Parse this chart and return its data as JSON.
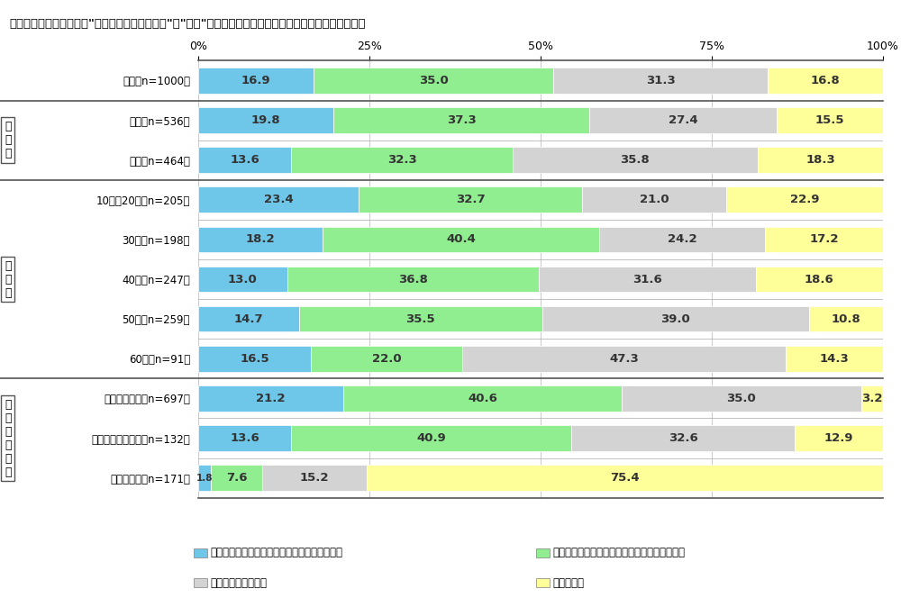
{
  "title": "商品を購入するときに、\"温室効果ガス削減効果\"と\"価格\"ではどちらを重視して選ぶか　［単一回答形式］",
  "categories": [
    "全体［n=1000］",
    "男性［n=536］",
    "女性［n=464］",
    "10代・20代［n=205］",
    "30代［n=198］",
    "40代［n=247］",
    "50代［n=259］",
    "60代［n=91］",
    "取り組みたい［n=697］",
    "取り組みたくない［n=132］",
    "わからない［n=171］"
  ],
  "group_labels": [
    "男\n女\n別",
    "年\n代\n別",
    "取\nり\n組\nみ\n意\n向"
  ],
  "group_rows": [
    [
      1,
      2
    ],
    [
      3,
      4,
      5,
      6,
      7
    ],
    [
      8,
      9,
      10
    ]
  ],
  "data": [
    [
      16.9,
      35.0,
      31.3,
      16.8
    ],
    [
      19.8,
      37.3,
      27.4,
      15.5
    ],
    [
      13.6,
      32.3,
      35.8,
      18.3
    ],
    [
      23.4,
      32.7,
      21.0,
      22.9
    ],
    [
      18.2,
      40.4,
      24.2,
      17.2
    ],
    [
      13.0,
      36.8,
      31.6,
      18.6
    ],
    [
      14.7,
      35.5,
      39.0,
      10.8
    ],
    [
      16.5,
      22.0,
      47.3,
      14.3
    ],
    [
      21.2,
      40.6,
      35.0,
      3.2
    ],
    [
      13.6,
      40.9,
      32.6,
      12.9
    ],
    [
      1.8,
      7.6,
      15.2,
      75.4
    ]
  ],
  "colors": [
    "#6EC6E8",
    "#90EE90",
    "#D3D3D3",
    "#FFFF99"
  ],
  "legend_labels": [
    "価格よりも、温室効果ガス削減効果を重視する",
    "温室効果ガス削減効果よりも、価格を重視する",
    "どちらとも言えない",
    "わからない"
  ],
  "legend_colors": [
    "#6EC6E8",
    "#90EE90",
    "#D3D3D3",
    "#FFFF99"
  ],
  "bar_height": 0.65,
  "ylabel_fontsize": 10,
  "tick_fontsize": 9,
  "value_fontsize": 9.5,
  "background_color": "#FFFFFF",
  "grid_color": "#CCCCCC"
}
